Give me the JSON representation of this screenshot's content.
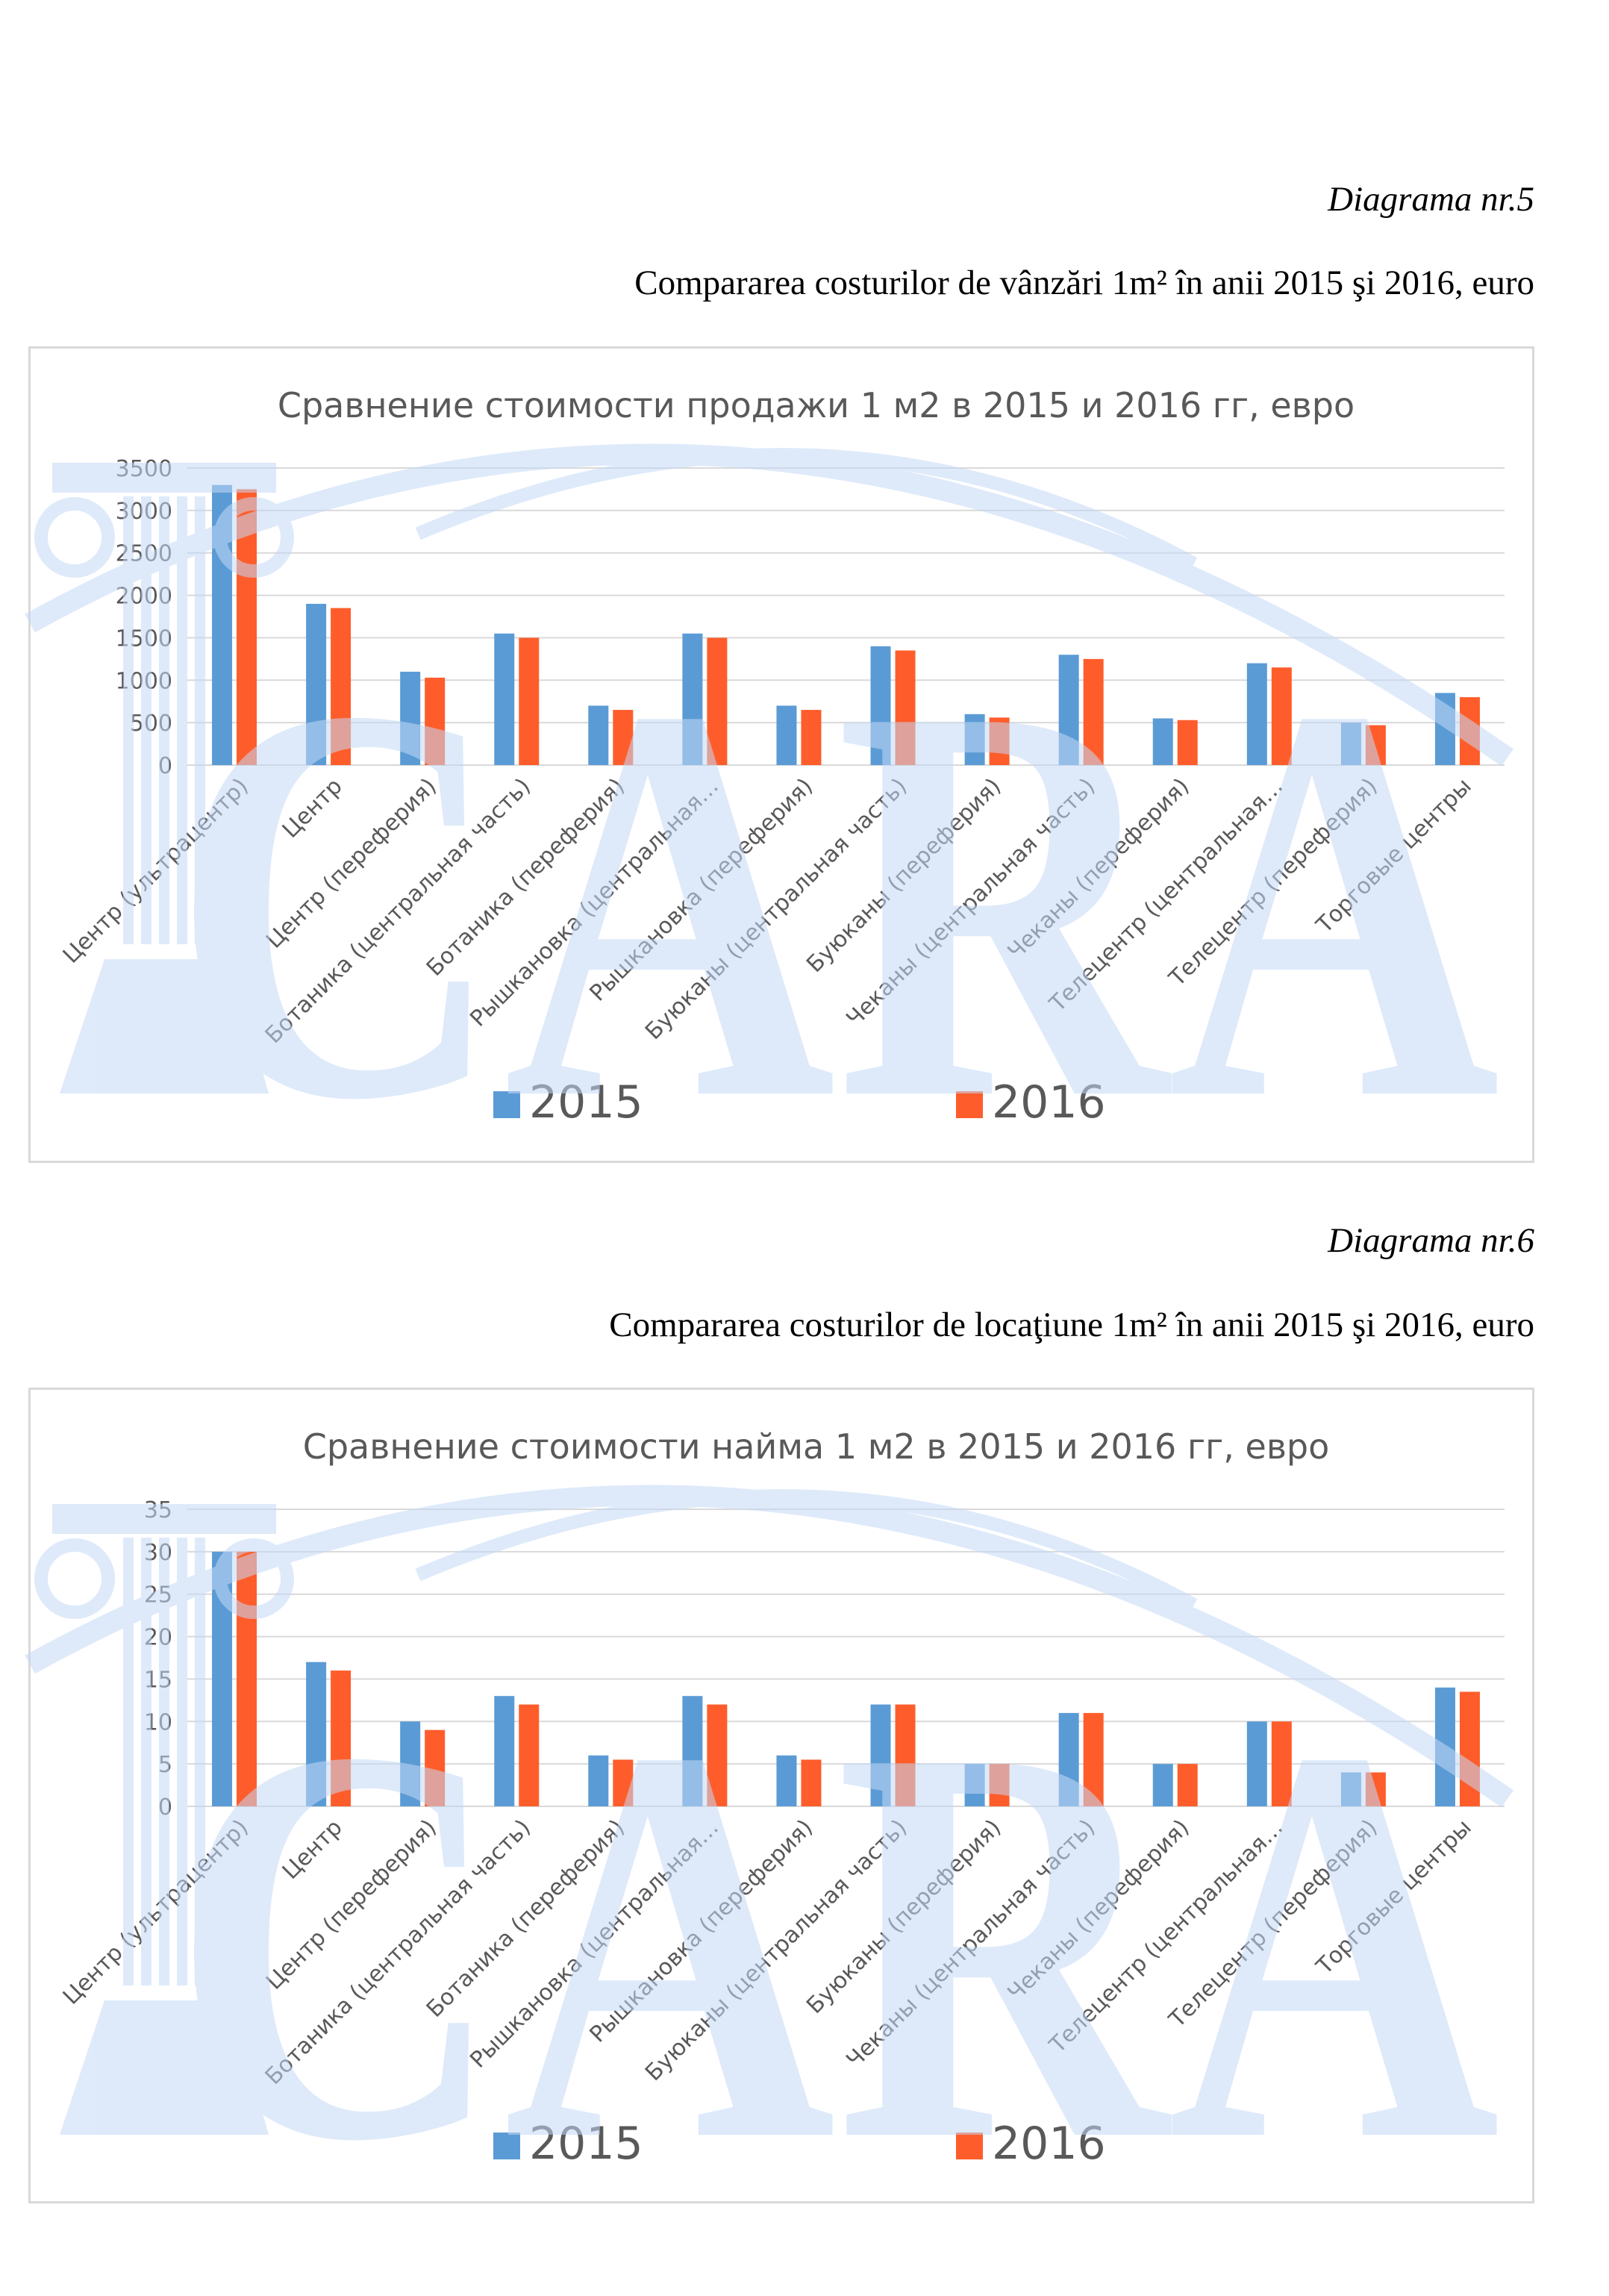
{
  "captions": [
    {
      "number": "Diagrama nr.5",
      "title": "Compararea costurilor de vânzări 1m² în anii 2015 şi 2016, euro"
    },
    {
      "number": "Diagrama nr.6",
      "title": "Compararea costurilor de locaţiune 1m² în anii 2015 şi 2016, euro"
    }
  ],
  "watermark_text": "CARA",
  "colors": {
    "s2015": "#5b9bd5",
    "s2016": "#fe5d2b",
    "grid": "#d9d9d9",
    "text": "#595959",
    "watermark": "#c4d9f7"
  },
  "chart_data": [
    {
      "type": "bar",
      "title": "Сравнение стоимости продажи 1 м2 в 2015 и 2016 гг, евро",
      "categories": [
        "Центр (ультрацентр)",
        "Центр",
        "Центр (переферия)",
        "Ботаника (центральная часть)",
        "Ботаника (переферия)",
        "Рышкановка (центральная…",
        "Рышкановка (переферия)",
        "Буюканы (центральная часть)",
        "Буюканы (переферия)",
        "Чеканы (центральная часть)",
        "Чеканы (переферия)",
        "Телецентр (центральная…",
        "Телецентр (переферия)",
        "Торговые центры"
      ],
      "series": [
        {
          "name": "2015",
          "values": [
            3300,
            1900,
            1100,
            1550,
            700,
            1550,
            700,
            1400,
            600,
            1300,
            550,
            1200,
            500,
            850
          ]
        },
        {
          "name": "2016",
          "values": [
            3250,
            1850,
            1030,
            1500,
            650,
            1500,
            650,
            1350,
            560,
            1250,
            530,
            1150,
            470,
            800
          ]
        }
      ],
      "yticks": [
        "0",
        "500",
        "1000",
        "1500",
        "2000",
        "2500",
        "3000",
        "3500"
      ],
      "ylim": [
        0,
        3500
      ],
      "grid": true,
      "legend": "bottom"
    },
    {
      "type": "bar",
      "title": "Сравнение стоимости найма 1 м2 в 2015 и 2016 гг, евро",
      "categories": [
        "Центр (ультрацентр)",
        "Центр",
        "Центр (переферия)",
        "Ботаника (центральная часть)",
        "Ботаника (переферия)",
        "Рышкановка (центральная…",
        "Рышкановка (переферия)",
        "Буюканы (центральная часть)",
        "Буюканы (переферия)",
        "Чеканы (центральная часть)",
        "Чеканы (переферия)",
        "Телецентр (центральная…",
        "Телецентр (переферия)",
        "Торговые центры"
      ],
      "series": [
        {
          "name": "2015",
          "values": [
            30,
            17,
            10,
            13,
            6,
            13,
            6,
            12,
            5,
            11,
            5,
            10,
            4,
            14
          ]
        },
        {
          "name": "2016",
          "values": [
            30,
            16,
            9,
            12,
            5.5,
            12,
            5.5,
            12,
            5,
            11,
            5,
            10,
            4,
            13.5
          ]
        }
      ],
      "yticks": [
        "0",
        "5",
        "10",
        "15",
        "20",
        "25",
        "30",
        "35"
      ],
      "ylim": [
        0,
        35
      ],
      "grid": true,
      "legend": "bottom"
    }
  ]
}
